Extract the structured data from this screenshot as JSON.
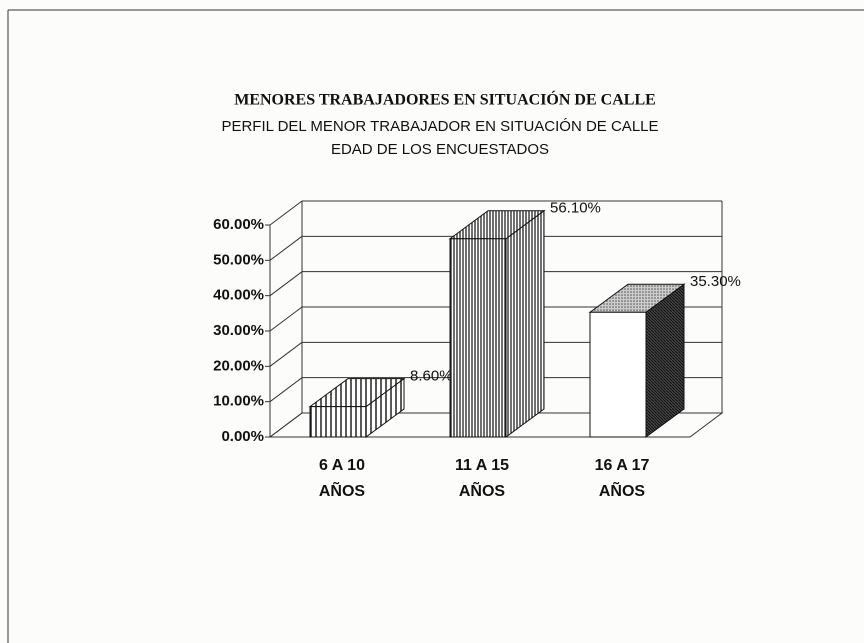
{
  "chart_data": {
    "type": "bar3d",
    "title": "MENORES TRABAJADORES EN SITUACIÓN DE CALLE",
    "subtitle": [
      "PERFIL DEL MENOR TRABAJADOR EN SITUACIÓN DE CALLE",
      "EDAD DE LOS ENCUESTADOS"
    ],
    "categories": [
      "6 A 10\nAÑOS",
      "11 A 15\nAÑOS",
      "16 A 17\nAÑOS"
    ],
    "values": [
      8.6,
      56.1,
      35.3
    ],
    "value_labels": [
      "8.60%",
      "56.10%",
      "35.30%"
    ],
    "ylim": [
      0,
      60
    ],
    "yticks": [
      {
        "value": 0,
        "label": "0.00%"
      },
      {
        "value": 10,
        "label": "10.00%"
      },
      {
        "value": 20,
        "label": "20.00%"
      },
      {
        "value": 30,
        "label": "30.00%"
      },
      {
        "value": 40,
        "label": "40.00%"
      },
      {
        "value": 50,
        "label": "50.00%"
      },
      {
        "value": 60,
        "label": "60.00%"
      }
    ],
    "grid": true
  }
}
